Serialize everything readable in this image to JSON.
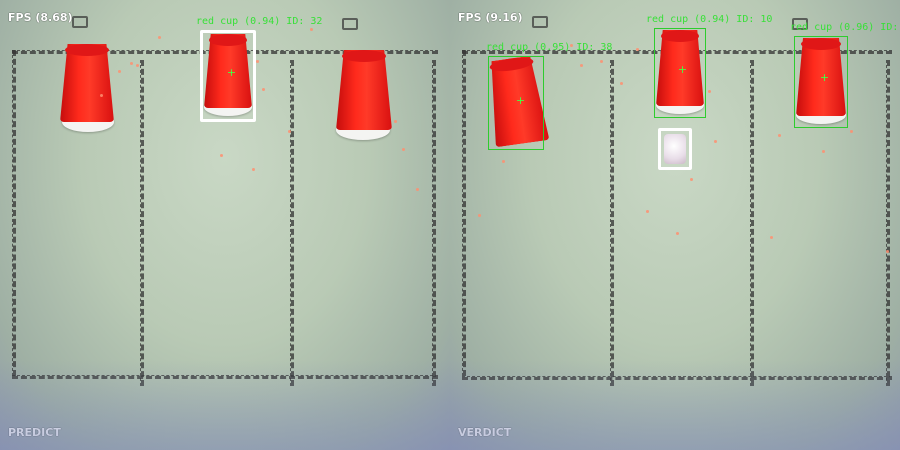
{
  "panels": [
    {
      "name": "left",
      "fps": "FPS (8.68)",
      "mode": "PREDICT",
      "label": "red cup (0.94) ID: 32"
    },
    {
      "name": "right",
      "fps": "FPS (9.16)",
      "mode": "VERDICT",
      "labels": [
        "red cup (0.95) ID: 38",
        "red cup (0.94) ID: 10",
        "red cup (0.96) ID: 4"
      ]
    }
  ],
  "colors": {
    "cup_red": "#ff2a1c",
    "box_green": "#2ecc2e",
    "highlight_white": "#ffffff",
    "particle": "#ff8f70"
  },
  "icons": [
    "crosshair-icon",
    "tripod-clip-icon"
  ]
}
